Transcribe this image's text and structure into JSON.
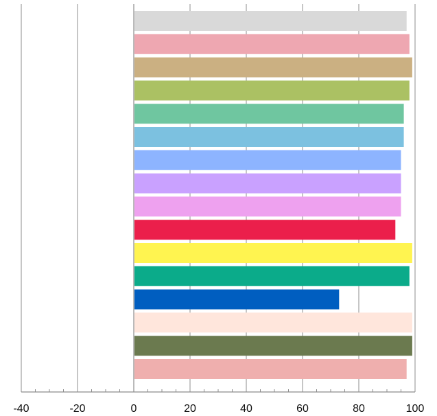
{
  "chart_data": {
    "type": "bar",
    "orientation": "horizontal",
    "title": "",
    "xlabel": "",
    "ylabel": "",
    "xlim": [
      -40,
      100
    ],
    "x_ticks": [
      -40,
      -20,
      0,
      20,
      40,
      60,
      80,
      100
    ],
    "x_tick_labels": [
      "-40",
      "-20",
      "0",
      "20",
      "40",
      "60",
      "80",
      "100"
    ],
    "grid": "vertical major gridlines",
    "legend": "none",
    "bars": [
      {
        "value": 97,
        "color": "#D9D9D9"
      },
      {
        "value": 98,
        "color": "#EEA7B1"
      },
      {
        "value": 99,
        "color": "#CBB082"
      },
      {
        "value": 98,
        "color": "#ABC163"
      },
      {
        "value": 96,
        "color": "#6FC6A0"
      },
      {
        "value": 96,
        "color": "#7CC1E0"
      },
      {
        "value": 95,
        "color": "#8DB4FF"
      },
      {
        "value": 95,
        "color": "#C9A1FF"
      },
      {
        "value": 95,
        "color": "#EEA1EF"
      },
      {
        "value": 93,
        "color": "#EB1F4B"
      },
      {
        "value": 99,
        "color": "#FFF450"
      },
      {
        "value": 98,
        "color": "#0BAB8A"
      },
      {
        "value": 73,
        "color": "#005EC0"
      },
      {
        "value": 99,
        "color": "#FFE6DC"
      },
      {
        "value": 99,
        "color": "#6B7A4F"
      },
      {
        "value": 97,
        "color": "#EFAFAE"
      }
    ]
  }
}
